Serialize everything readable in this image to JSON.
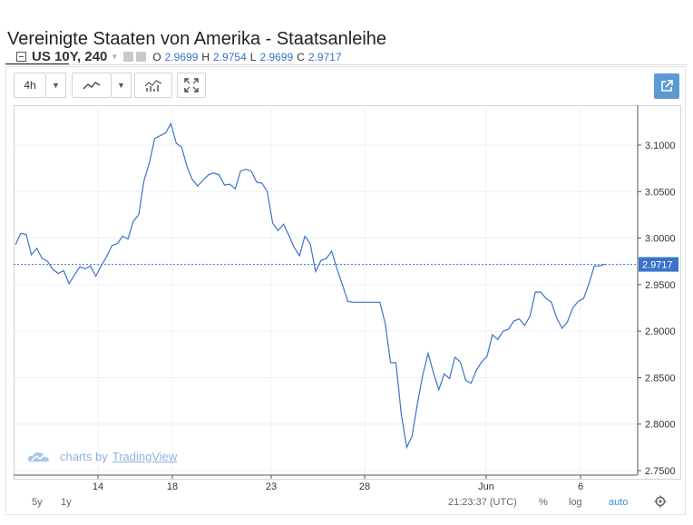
{
  "page": {
    "title": "Vereinigte Staaten von Amerika - Staatsanleihe"
  },
  "toolbar": {
    "interval": "4h"
  },
  "legend": {
    "symbol": "US 10Y, 240",
    "open_label": "O",
    "open_value": "2.9699",
    "high_label": "H",
    "high_value": "2.9754",
    "low_label": "L",
    "low_value": "2.9699",
    "close_label": "C",
    "close_value": "2.9717"
  },
  "watermark": {
    "prefix": "charts by",
    "brand": "TradingView"
  },
  "bottom_bar": {
    "range_5y": "5y",
    "range_1y": "1y",
    "time": "21:23:37 (UTC)",
    "percent": "%",
    "log": "log",
    "auto": "auto"
  },
  "colors": {
    "line": "#3a73c8",
    "price_tag": "#3a73c8",
    "accent": "#5d9ad3"
  },
  "chart_data": {
    "type": "line",
    "ylim": [
      2.74,
      3.14
    ],
    "y_ticks": [
      "2.7500",
      "2.8000",
      "2.8500",
      "2.9000",
      "2.9500",
      "3.0000",
      "3.0500",
      "3.1000"
    ],
    "x_tick_labels": [
      "14",
      "18",
      "23",
      "28",
      "Jun",
      "6"
    ],
    "last_price": "2.9717",
    "series": [
      {
        "values": [
          2.993,
          3.005,
          3.004,
          2.982,
          2.989,
          2.978,
          2.975,
          2.966,
          2.962,
          2.965,
          2.951,
          2.96,
          2.969,
          2.967,
          2.97,
          2.959,
          2.97,
          2.98,
          2.992,
          2.994,
          3.002,
          2.999,
          3.018,
          3.025,
          3.062,
          3.081,
          3.107,
          3.11,
          3.113,
          3.123,
          3.102,
          3.098,
          3.077,
          3.063,
          3.056,
          3.062,
          3.068,
          3.07,
          3.068,
          3.057,
          3.058,
          3.053,
          3.072,
          3.074,
          3.072,
          3.06,
          3.059,
          3.05,
          3.016,
          3.008,
          3.015,
          3.003,
          2.99,
          2.981,
          3.002,
          2.994,
          2.964,
          2.976,
          2.978,
          2.986,
          2.967,
          2.95,
          2.932,
          2.931,
          2.931,
          2.931,
          2.931,
          2.931,
          2.931,
          2.908,
          2.866,
          2.866,
          2.81,
          2.775,
          2.787,
          2.822,
          2.853,
          2.876,
          2.855,
          2.837,
          2.854,
          2.849,
          2.872,
          2.867,
          2.847,
          2.844,
          2.858,
          2.867,
          2.873,
          2.896,
          2.891,
          2.9,
          2.902,
          2.911,
          2.913,
          2.906,
          2.916,
          2.942,
          2.942,
          2.935,
          2.931,
          2.914,
          2.903,
          2.91,
          2.925,
          2.932,
          2.935,
          2.951,
          2.97,
          2.97,
          2.972
        ]
      }
    ]
  }
}
